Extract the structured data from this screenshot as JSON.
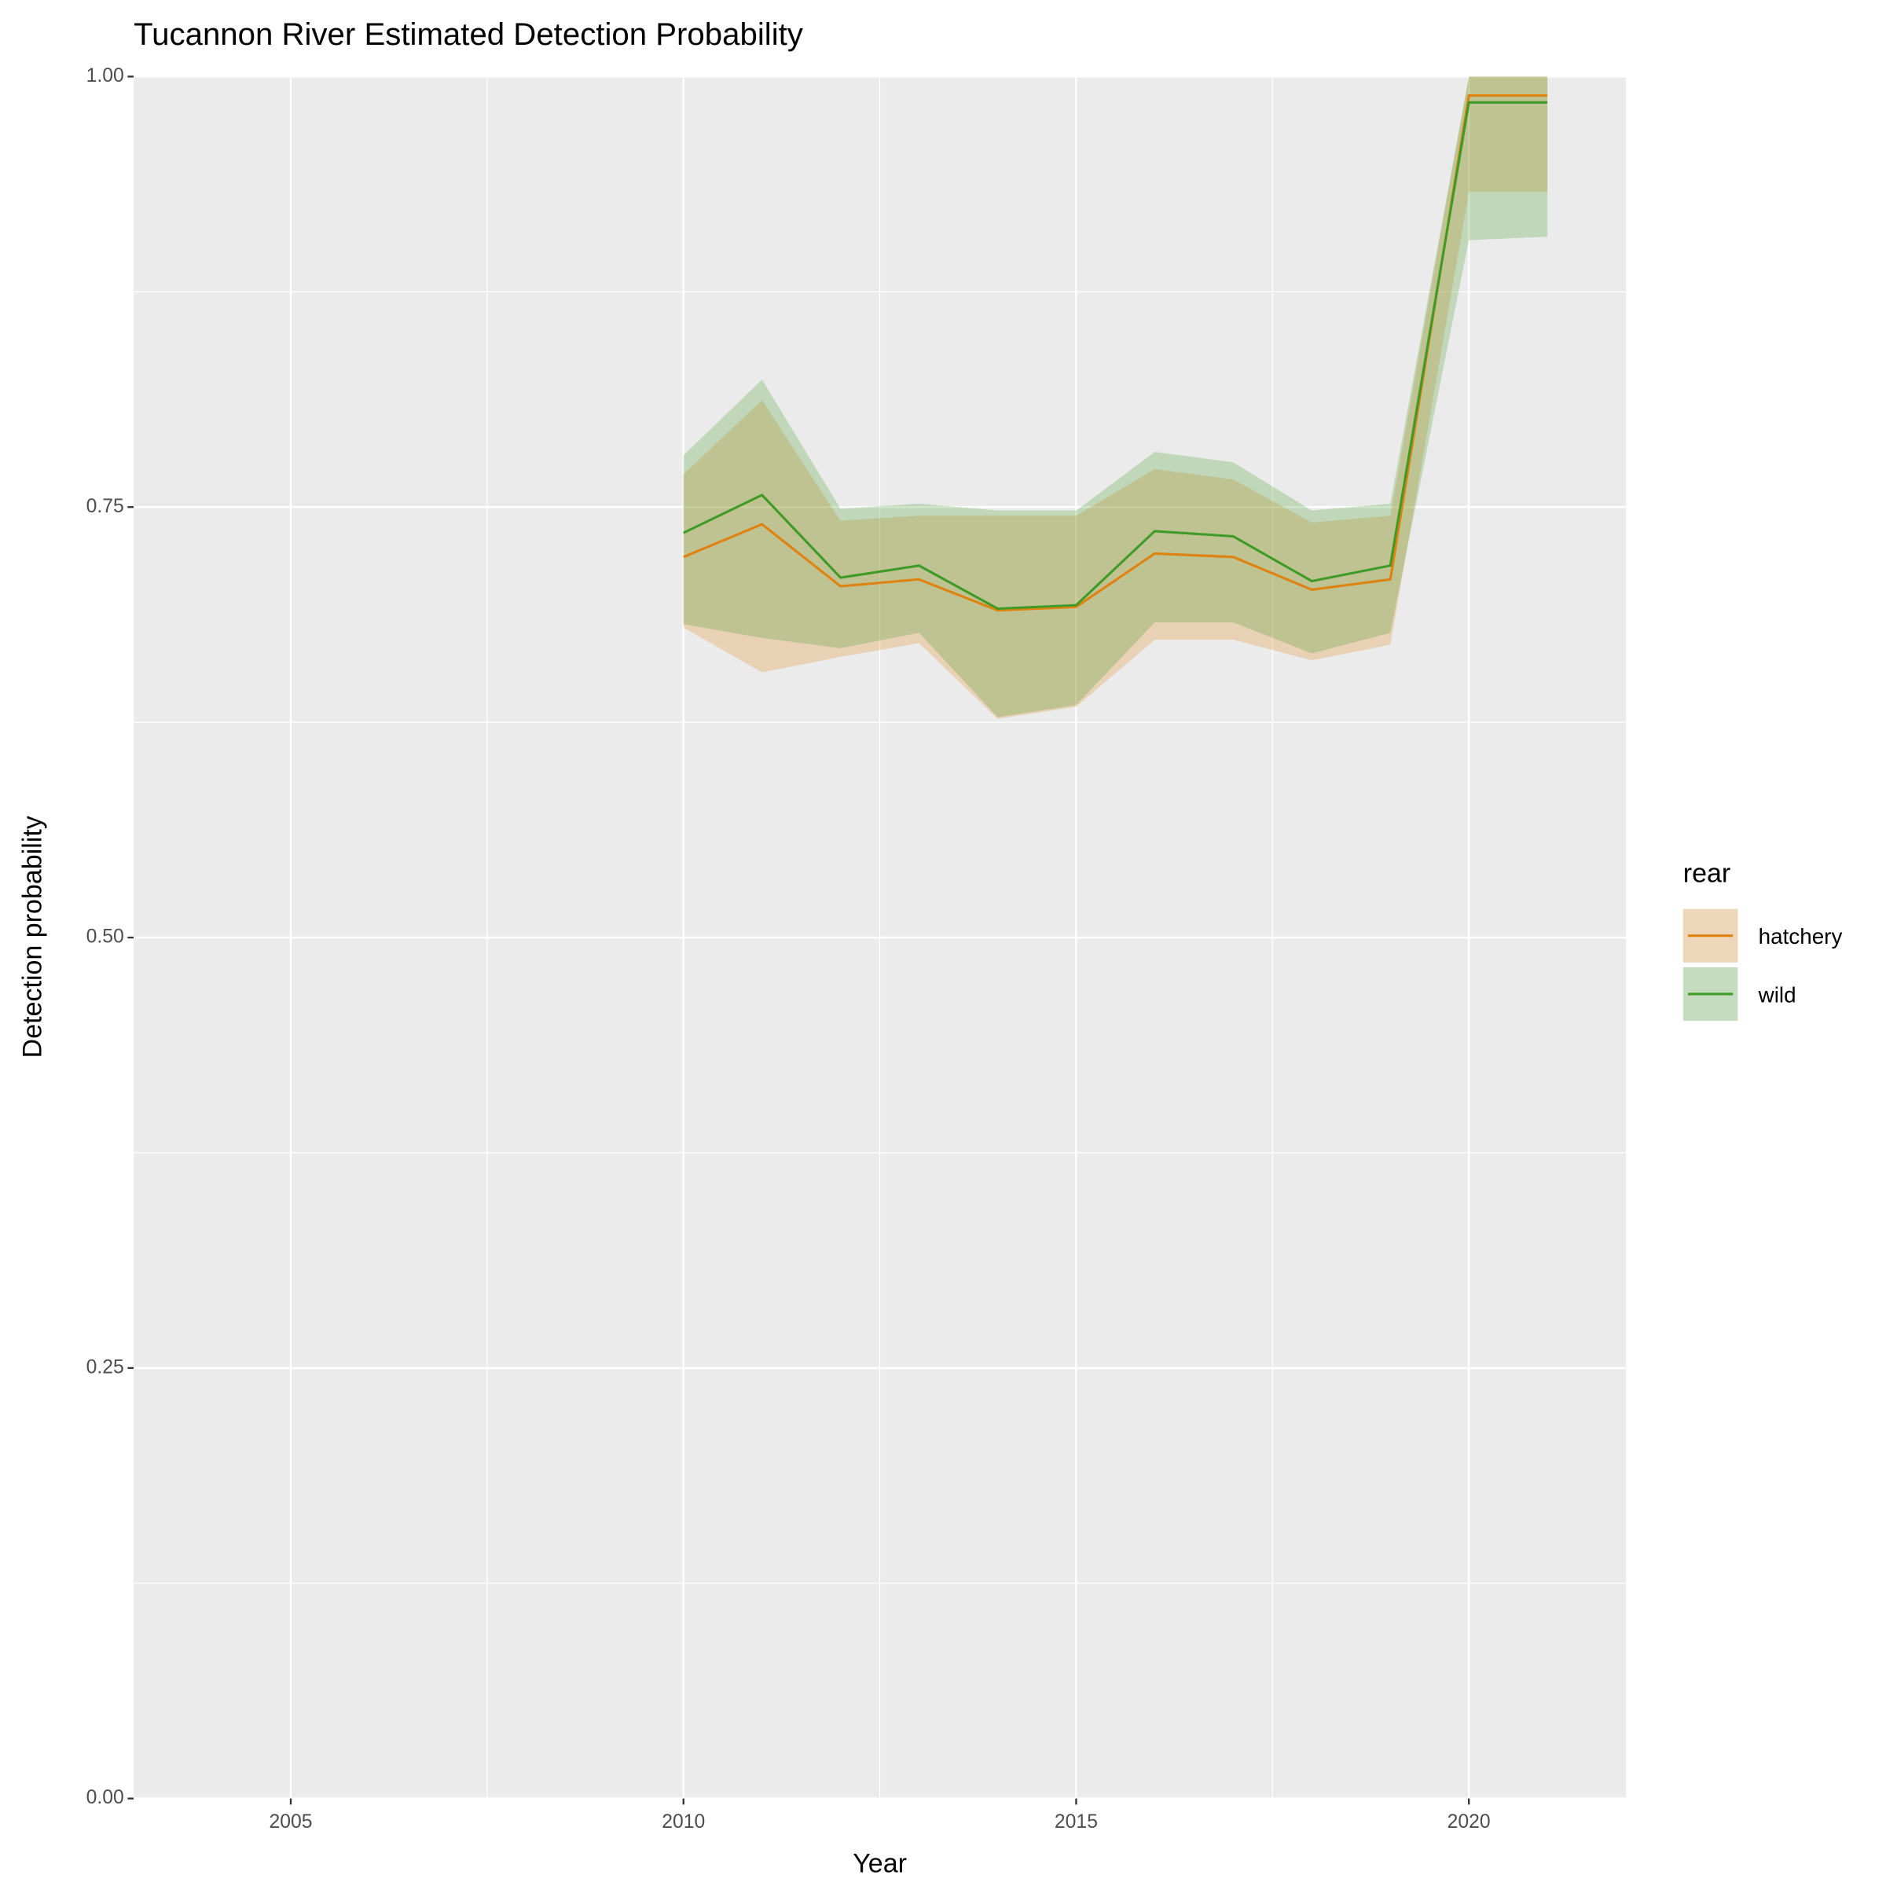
{
  "chart_data": {
    "type": "line",
    "title": "Tucannon River Estimated Detection Probability",
    "x_label": "Year",
    "y_label": "Detection probability",
    "legend_title": "rear",
    "x": [
      2010,
      2011,
      2012,
      2013,
      2014,
      2015,
      2016,
      2017,
      2018,
      2019,
      2020,
      2021
    ],
    "series": [
      {
        "name": "hatchery",
        "color": "#e0820f",
        "values": [
          0.721,
          0.74,
          0.704,
          0.708,
          0.69,
          0.692,
          0.723,
          0.721,
          0.702,
          0.708,
          0.989,
          0.989
        ],
        "lower": [
          0.68,
          0.654,
          0.663,
          0.671,
          0.627,
          0.634,
          0.673,
          0.673,
          0.661,
          0.67,
          0.933,
          0.933
        ],
        "upper": [
          0.769,
          0.812,
          0.742,
          0.745,
          0.745,
          0.745,
          0.772,
          0.766,
          0.741,
          0.745,
          1.0,
          1.0
        ]
      },
      {
        "name": "wild",
        "color": "#3f9a26",
        "values": [
          0.735,
          0.757,
          0.709,
          0.716,
          0.691,
          0.693,
          0.736,
          0.733,
          0.707,
          0.716,
          0.985,
          0.985
        ],
        "lower": [
          0.682,
          0.674,
          0.668,
          0.677,
          0.628,
          0.635,
          0.683,
          0.683,
          0.665,
          0.677,
          0.905,
          0.907
        ],
        "upper": [
          0.78,
          0.824,
          0.749,
          0.752,
          0.748,
          0.748,
          0.782,
          0.776,
          0.748,
          0.752,
          1.0,
          1.0
        ]
      }
    ],
    "xlim": [
      2003.0,
      2022.0
    ],
    "xticks": [
      2005,
      2010,
      2015,
      2020
    ],
    "ylim": [
      0,
      1
    ],
    "yticks": [
      {
        "value": 0,
        "label": "0.00"
      },
      {
        "value": 0.25,
        "label": "0.25"
      },
      {
        "value": 0.5,
        "label": "0.50"
      },
      {
        "value": 0.75,
        "label": "0.75"
      },
      {
        "value": 1,
        "label": "1.00"
      }
    ],
    "grid": true,
    "ribbon_opacity": 0.25,
    "legend_position": "right"
  }
}
